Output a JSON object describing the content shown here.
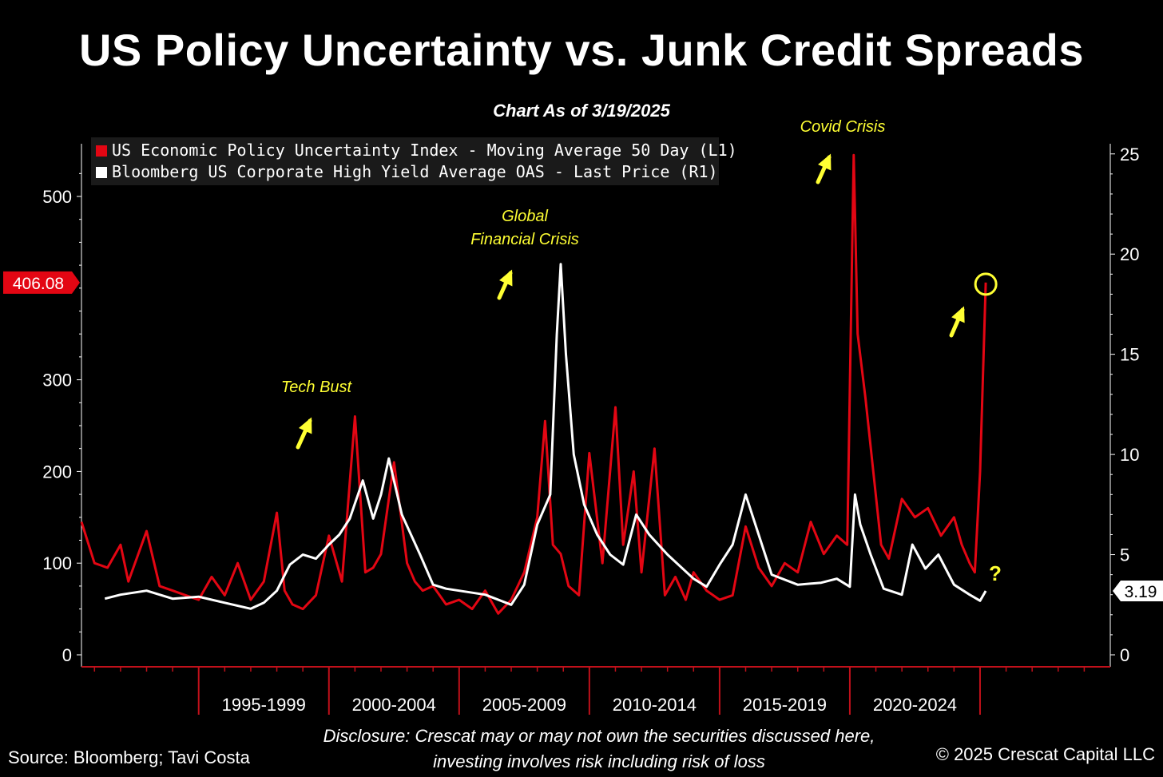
{
  "title": "US Policy Uncertainty vs. Junk Credit Spreads",
  "subtitle": "Chart As of 3/19/2025",
  "legend": {
    "series1": "US Economic Policy Uncertainty Index - Moving Average 50 Day (L1)",
    "series2": "Bloomberg US Corporate High Yield Average OAS - Last Price (R1)"
  },
  "annotations": {
    "tech_bust": "Tech Bust",
    "gfc_line1": "Global",
    "gfc_line2": "Financial Crisis",
    "covid": "Covid Crisis",
    "question": "?"
  },
  "footer": {
    "disclosure_line1": "Disclosure: Crescat may or may not own the securities discussed here,",
    "disclosure_line2": "investing involves risk including risk of loss",
    "source": "Source: Bloomberg; Tavi Costa",
    "copyright": "© 2025 Crescat Capital LLC"
  },
  "colors": {
    "red": "#e30613",
    "white": "#ffffff",
    "yellow": "#ffff33",
    "background": "#000000",
    "axis_red": "#c0101a"
  },
  "chart_data": {
    "type": "line",
    "xlabel": "",
    "ylabel": "",
    "x_tick_labels": [
      "1995-1999",
      "2000-2004",
      "2005-2009",
      "2010-2014",
      "2015-2019",
      "2020-2024"
    ],
    "xlim": [
      1990.5,
      2030.0
    ],
    "left_axis": {
      "ylim": [
        0,
        550
      ],
      "ticks": [
        0,
        100,
        200,
        300,
        500
      ]
    },
    "right_axis": {
      "ylim": [
        0,
        26
      ],
      "ticks": [
        0,
        5,
        10,
        15,
        20,
        25
      ]
    },
    "last_value_labels": {
      "left": "406.08",
      "right": "3.19"
    },
    "series": [
      {
        "name": "US Economic Policy Uncertainty Index - Moving Average 50 Day (L1)",
        "axis": "left",
        "color": "#e30613",
        "x": [
          1990.5,
          1991.0,
          1991.5,
          1992.0,
          1992.3,
          1993.0,
          1993.5,
          1994.0,
          1994.5,
          1995.0,
          1995.5,
          1996.0,
          1996.5,
          1997.0,
          1997.5,
          1998.0,
          1998.3,
          1998.6,
          1999.0,
          1999.5,
          2000.0,
          2000.5,
          2001.0,
          2001.4,
          2001.7,
          2002.0,
          2002.5,
          2003.0,
          2003.3,
          2003.6,
          2004.0,
          2004.5,
          2005.0,
          2005.5,
          2006.0,
          2006.5,
          2007.0,
          2007.5,
          2008.0,
          2008.3,
          2008.6,
          2008.9,
          2009.2,
          2009.6,
          2010.0,
          2010.5,
          2011.0,
          2011.3,
          2011.7,
          2012.0,
          2012.5,
          2012.9,
          2013.3,
          2013.7,
          2014.0,
          2014.5,
          2015.0,
          2015.5,
          2016.0,
          2016.5,
          2017.0,
          2017.5,
          2018.0,
          2018.5,
          2019.0,
          2019.5,
          2019.9,
          2020.15,
          2020.3,
          2020.6,
          2020.9,
          2021.2,
          2021.5,
          2022.0,
          2022.5,
          2023.0,
          2023.5,
          2024.0,
          2024.3,
          2024.6,
          2024.8,
          2025.0,
          2025.22
        ],
        "values": [
          145,
          100,
          95,
          120,
          80,
          135,
          75,
          70,
          65,
          60,
          85,
          65,
          100,
          60,
          80,
          155,
          70,
          55,
          50,
          65,
          130,
          80,
          260,
          90,
          95,
          110,
          210,
          100,
          80,
          70,
          75,
          55,
          60,
          50,
          70,
          45,
          60,
          90,
          150,
          255,
          120,
          110,
          75,
          65,
          220,
          100,
          270,
          120,
          200,
          90,
          225,
          65,
          85,
          60,
          90,
          70,
          60,
          65,
          140,
          95,
          75,
          100,
          90,
          145,
          110,
          130,
          120,
          545,
          350,
          280,
          200,
          120,
          105,
          170,
          150,
          160,
          130,
          150,
          120,
          100,
          90,
          200,
          406.08
        ]
      },
      {
        "name": "Bloomberg US Corporate High Yield Average OAS - Last Price (R1)",
        "axis": "right",
        "color": "#ffffff",
        "x": [
          1991.4,
          1992.0,
          1993.0,
          1994.0,
          1995.0,
          1996.0,
          1997.0,
          1997.5,
          1998.0,
          1998.5,
          1999.0,
          1999.5,
          2000.0,
          2000.4,
          2000.8,
          2001.3,
          2001.7,
          2002.0,
          2002.3,
          2002.8,
          2003.5,
          2004.0,
          2004.5,
          2005.0,
          2006.0,
          2007.0,
          2007.5,
          2008.0,
          2008.5,
          2008.75,
          2008.9,
          2009.1,
          2009.4,
          2009.8,
          2010.3,
          2010.8,
          2011.3,
          2011.8,
          2012.3,
          2013.0,
          2014.0,
          2014.5,
          2015.0,
          2015.5,
          2016.0,
          2016.5,
          2017.0,
          2018.0,
          2018.9,
          2019.5,
          2020.0,
          2020.2,
          2020.4,
          2020.8,
          2021.3,
          2022.0,
          2022.4,
          2022.9,
          2023.4,
          2024.0,
          2024.6,
          2025.0,
          2025.22
        ],
        "values": [
          2.8,
          3.0,
          3.2,
          2.8,
          2.9,
          2.6,
          2.3,
          2.6,
          3.2,
          4.5,
          5.0,
          4.8,
          5.5,
          6.0,
          6.8,
          8.7,
          6.8,
          8.0,
          9.8,
          7.0,
          5.0,
          3.5,
          3.3,
          3.2,
          3.0,
          2.5,
          3.5,
          6.5,
          8.0,
          16.0,
          19.5,
          15.0,
          10.0,
          7.5,
          6.0,
          5.0,
          4.5,
          7.0,
          6.0,
          5.0,
          3.8,
          3.4,
          4.5,
          5.5,
          8.0,
          6.0,
          4.0,
          3.5,
          3.6,
          3.8,
          3.4,
          8.0,
          6.5,
          5.0,
          3.3,
          3.0,
          5.5,
          4.3,
          5.0,
          3.5,
          3.0,
          2.7,
          3.19
        ]
      }
    ]
  }
}
